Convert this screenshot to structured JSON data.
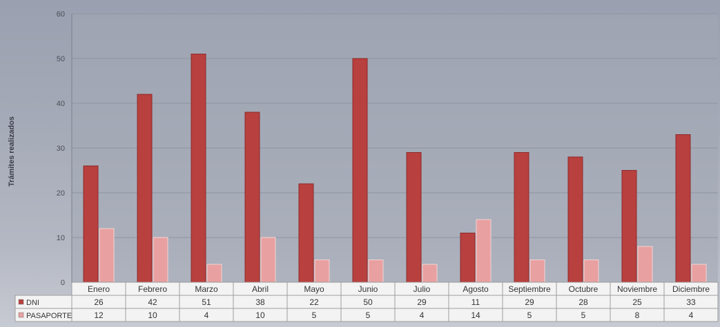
{
  "chart_data": {
    "type": "bar",
    "ylabel": "Trámites realizados",
    "ylim": [
      0,
      60
    ],
    "y_ticks": [
      "0",
      "10",
      "20",
      "30",
      "40",
      "50",
      "60"
    ],
    "grid": true,
    "categories": [
      "Enero",
      "Febrero",
      "Marzo",
      "Abril",
      "Mayo",
      "Junio",
      "Julio",
      "Agosto",
      "Septiembre",
      "Octubre",
      "Noviembre",
      "Diciembre"
    ],
    "series": [
      {
        "name": "DNI",
        "color": "#b8403e",
        "values": [
          26,
          42,
          51,
          38,
          22,
          50,
          29,
          11,
          29,
          28,
          25,
          33
        ]
      },
      {
        "name": "PASAPORTE",
        "color": "#e8a0a0",
        "values": [
          12,
          10,
          4,
          10,
          5,
          5,
          4,
          14,
          5,
          5,
          8,
          4
        ]
      }
    ],
    "legend": "data-table"
  },
  "colors": {
    "plot_bg": "#a2a7b4",
    "gridline": "#8f94a1",
    "table_bg": "#f3f3f3",
    "table_border": "#9c9c9c",
    "text": "#333333"
  }
}
